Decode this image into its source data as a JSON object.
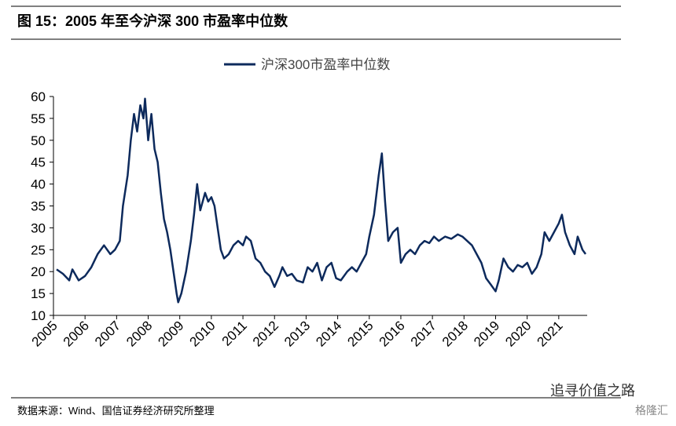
{
  "header": {
    "title": "图 15：2005 年至今沪深 300 市盈率中位数"
  },
  "chart_data": {
    "type": "line",
    "x": [
      2005.1,
      2005.3,
      2005.5,
      2005.6,
      2005.8,
      2006.0,
      2006.2,
      2006.4,
      2006.6,
      2006.8,
      2006.95,
      2007.1,
      2007.2,
      2007.35,
      2007.45,
      2007.55,
      2007.65,
      2007.75,
      2007.85,
      2007.9,
      2008.0,
      2008.1,
      2008.2,
      2008.3,
      2008.4,
      2008.5,
      2008.6,
      2008.7,
      2008.8,
      2008.9,
      2008.95,
      2009.05,
      2009.2,
      2009.35,
      2009.45,
      2009.55,
      2009.65,
      2009.8,
      2009.9,
      2010.0,
      2010.1,
      2010.2,
      2010.3,
      2010.4,
      2010.55,
      2010.7,
      2010.85,
      2011.0,
      2011.1,
      2011.25,
      2011.4,
      2011.55,
      2011.7,
      2011.85,
      2012.0,
      2012.15,
      2012.25,
      2012.4,
      2012.55,
      2012.7,
      2012.9,
      2013.05,
      2013.2,
      2013.35,
      2013.5,
      2013.65,
      2013.8,
      2013.95,
      2014.1,
      2014.3,
      2014.45,
      2014.6,
      2014.75,
      2014.9,
      2015.0,
      2015.15,
      2015.3,
      2015.4,
      2015.5,
      2015.6,
      2015.75,
      2015.9,
      2016.0,
      2016.15,
      2016.3,
      2016.45,
      2016.6,
      2016.75,
      2016.9,
      2017.05,
      2017.2,
      2017.4,
      2017.6,
      2017.8,
      2017.95,
      2018.1,
      2018.25,
      2018.4,
      2018.55,
      2018.7,
      2018.85,
      2019.0,
      2019.1,
      2019.25,
      2019.4,
      2019.55,
      2019.7,
      2019.85,
      2020.0,
      2020.15,
      2020.3,
      2020.45,
      2020.55,
      2020.7,
      2020.85,
      2021.0,
      2021.1,
      2021.2,
      2021.35,
      2021.5,
      2021.6,
      2021.75,
      2021.85
    ],
    "series": [
      {
        "name": "沪深300市盈率中位数",
        "color": "#0d2a5c",
        "values": [
          20.5,
          19.5,
          18,
          20.5,
          18,
          19,
          21,
          24,
          26,
          24,
          25,
          27,
          35,
          42,
          50,
          56,
          52,
          58,
          55,
          59.5,
          50,
          56,
          48,
          45,
          38,
          32,
          29,
          25,
          20,
          15,
          13,
          15,
          20,
          27,
          33,
          40,
          34,
          38,
          36,
          37,
          35,
          30,
          25,
          23,
          24,
          26,
          27,
          26,
          28,
          27,
          23,
          22,
          20,
          19,
          16.5,
          19,
          21,
          19,
          19.5,
          18,
          17.5,
          21,
          20,
          22,
          18,
          21,
          22,
          18.5,
          18,
          20,
          21,
          20,
          22,
          24,
          28,
          33,
          42,
          47,
          36,
          27,
          29,
          30,
          22,
          24,
          25,
          24,
          26,
          27,
          26.5,
          28,
          27,
          28,
          27.5,
          28.5,
          28,
          27,
          26,
          24,
          22,
          18.5,
          17,
          15.5,
          18,
          23,
          21,
          20,
          21.5,
          21,
          22,
          19.5,
          21,
          24,
          29,
          27,
          29,
          31,
          33,
          29,
          26,
          24,
          28,
          25,
          24
        ]
      }
    ],
    "xlim": [
      2005,
      2021.9
    ],
    "xticks": [
      2005,
      2006,
      2007,
      2008,
      2009,
      2010,
      2011,
      2012,
      2013,
      2014,
      2015,
      2016,
      2017,
      2018,
      2019,
      2020,
      2021
    ],
    "ylim": [
      10,
      60
    ],
    "yticks": [
      10,
      15,
      20,
      25,
      30,
      35,
      40,
      45,
      50,
      55,
      60
    ]
  },
  "footer": {
    "source": "数据来源：Wind、国信证券经济研究所整理",
    "watermark": "追寻价值之路",
    "logo": "格隆汇"
  }
}
